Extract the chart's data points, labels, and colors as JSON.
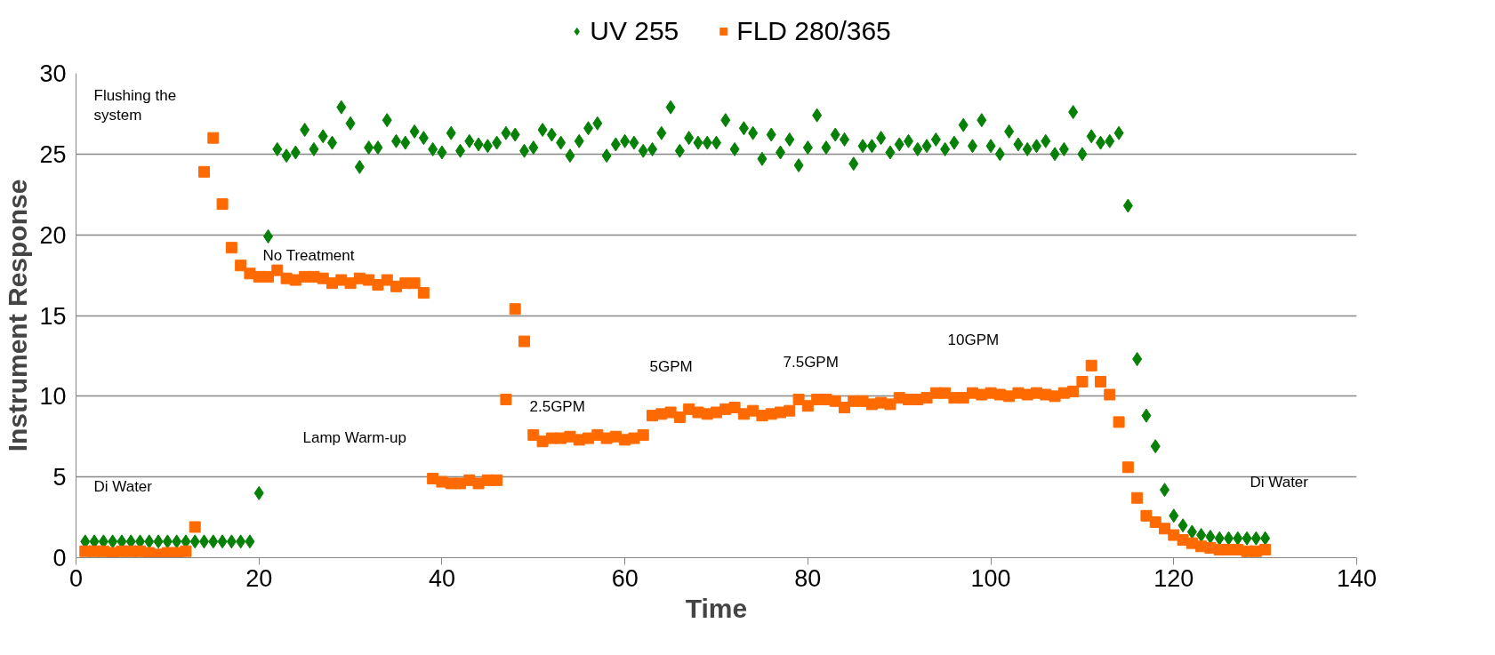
{
  "chart_data": {
    "type": "scatter",
    "xlabel": "Time",
    "ylabel": "Instrument Response",
    "x": [
      1,
      2,
      3,
      4,
      5,
      6,
      7,
      8,
      9,
      10,
      11,
      12,
      13,
      14,
      15,
      16,
      17,
      18,
      19,
      20,
      21,
      22,
      23,
      24,
      25,
      26,
      27,
      28,
      29,
      30,
      31,
      32,
      33,
      34,
      35,
      36,
      37,
      38,
      39,
      40,
      41,
      42,
      43,
      44,
      45,
      46,
      47,
      48,
      49,
      50,
      51,
      52,
      53,
      54,
      55,
      56,
      57,
      58,
      59,
      60,
      61,
      62,
      63,
      64,
      65,
      66,
      67,
      68,
      69,
      70,
      71,
      72,
      73,
      74,
      75,
      76,
      77,
      78,
      79,
      80,
      81,
      82,
      83,
      84,
      85,
      86,
      87,
      88,
      89,
      90,
      91,
      92,
      93,
      94,
      95,
      96,
      97,
      98,
      99,
      100,
      101,
      102,
      103,
      104,
      105,
      106,
      107,
      108,
      109,
      110,
      111,
      112,
      113,
      114,
      115,
      116,
      117,
      118,
      119,
      120,
      121,
      122,
      123,
      124,
      125,
      126,
      127,
      128,
      129,
      130
    ],
    "series": [
      {
        "name": "UV 255",
        "color": "#078007",
        "marker": "diamond",
        "values": [
          1.0,
          1.0,
          1.0,
          1.0,
          1.0,
          1.0,
          1.0,
          1.0,
          1.0,
          1.0,
          1.0,
          1.0,
          1.0,
          1.0,
          1.0,
          1.0,
          1.0,
          1.0,
          1.0,
          4.0,
          19.9,
          25.3,
          24.9,
          25.1,
          26.5,
          25.3,
          26.1,
          25.7,
          27.9,
          26.9,
          24.2,
          25.4,
          25.4,
          27.1,
          25.8,
          25.7,
          26.4,
          26.0,
          25.3,
          25.1,
          26.3,
          25.2,
          25.8,
          25.6,
          25.5,
          25.7,
          26.3,
          26.2,
          25.2,
          25.4,
          26.5,
          26.2,
          25.7,
          24.9,
          25.8,
          26.6,
          26.9,
          24.9,
          25.6,
          25.8,
          25.7,
          25.2,
          25.3,
          26.3,
          27.9,
          25.2,
          26.0,
          25.7,
          25.7,
          25.7,
          27.1,
          25.3,
          26.6,
          26.3,
          24.7,
          26.2,
          25.1,
          25.9,
          24.3,
          25.4,
          27.4,
          25.4,
          26.2,
          25.9,
          24.4,
          25.5,
          25.5,
          26.0,
          25.1,
          25.6,
          25.8,
          25.3,
          25.5,
          25.9,
          25.3,
          25.7,
          26.8,
          25.5,
          27.1,
          25.5,
          25.0,
          26.4,
          25.6,
          25.3,
          25.5,
          25.8,
          25.0,
          25.3,
          27.6,
          25.0,
          26.1,
          25.7,
          25.8,
          26.3,
          21.8,
          12.3,
          8.8,
          6.9,
          4.2,
          2.6,
          2.0,
          1.6,
          1.4,
          1.3,
          1.2,
          1.2,
          1.2,
          1.2,
          1.2,
          1.2
        ]
      },
      {
        "name": "FLD 280/365",
        "color": "#ff6a00",
        "marker": "square",
        "values": [
          0.4,
          0.4,
          0.4,
          0.3,
          0.4,
          0.4,
          0.4,
          0.3,
          0.2,
          0.3,
          0.3,
          0.4,
          1.9,
          23.9,
          26.0,
          21.9,
          19.2,
          18.1,
          17.6,
          17.4,
          17.4,
          17.8,
          17.3,
          17.2,
          17.4,
          17.4,
          17.3,
          17.0,
          17.2,
          17.0,
          17.3,
          17.2,
          16.9,
          17.2,
          16.8,
          17.0,
          17.0,
          16.4,
          4.9,
          4.7,
          4.6,
          4.6,
          4.8,
          4.6,
          4.8,
          4.8,
          9.8,
          15.4,
          13.4,
          7.6,
          7.2,
          7.4,
          7.4,
          7.5,
          7.3,
          7.4,
          7.6,
          7.4,
          7.5,
          7.3,
          7.4,
          7.6,
          8.8,
          8.9,
          9.0,
          8.7,
          9.2,
          9.0,
          8.9,
          9.0,
          9.2,
          9.3,
          8.9,
          9.1,
          8.8,
          8.9,
          9.0,
          9.1,
          9.8,
          9.4,
          9.8,
          9.8,
          9.7,
          9.3,
          9.7,
          9.7,
          9.5,
          9.6,
          9.5,
          9.9,
          9.8,
          9.8,
          9.9,
          10.2,
          10.2,
          9.9,
          9.9,
          10.2,
          10.1,
          10.2,
          10.1,
          10.0,
          10.2,
          10.1,
          10.2,
          10.1,
          10.0,
          10.2,
          10.3,
          10.9,
          11.9,
          10.9,
          10.1,
          8.4,
          5.6,
          3.7,
          2.6,
          2.2,
          1.8,
          1.4,
          1.1,
          0.9,
          0.7,
          0.6,
          0.5,
          0.5,
          0.5,
          0.4,
          0.4,
          0.5
        ]
      }
    ],
    "xlim": [
      0,
      140
    ],
    "xticks": [
      0,
      20,
      40,
      60,
      80,
      100,
      120,
      140
    ],
    "ylim": [
      0,
      30
    ],
    "yticks": [
      0,
      5,
      10,
      15,
      20,
      25,
      30
    ],
    "grid": "y",
    "legend": "top",
    "annotations": [
      "Flushing the\nsystem",
      "Di Water",
      "No Treatment",
      "Lamp Warm-up",
      "2.5GPM",
      "5GPM",
      "7.5GPM",
      "10GPM",
      "Di Water"
    ]
  }
}
